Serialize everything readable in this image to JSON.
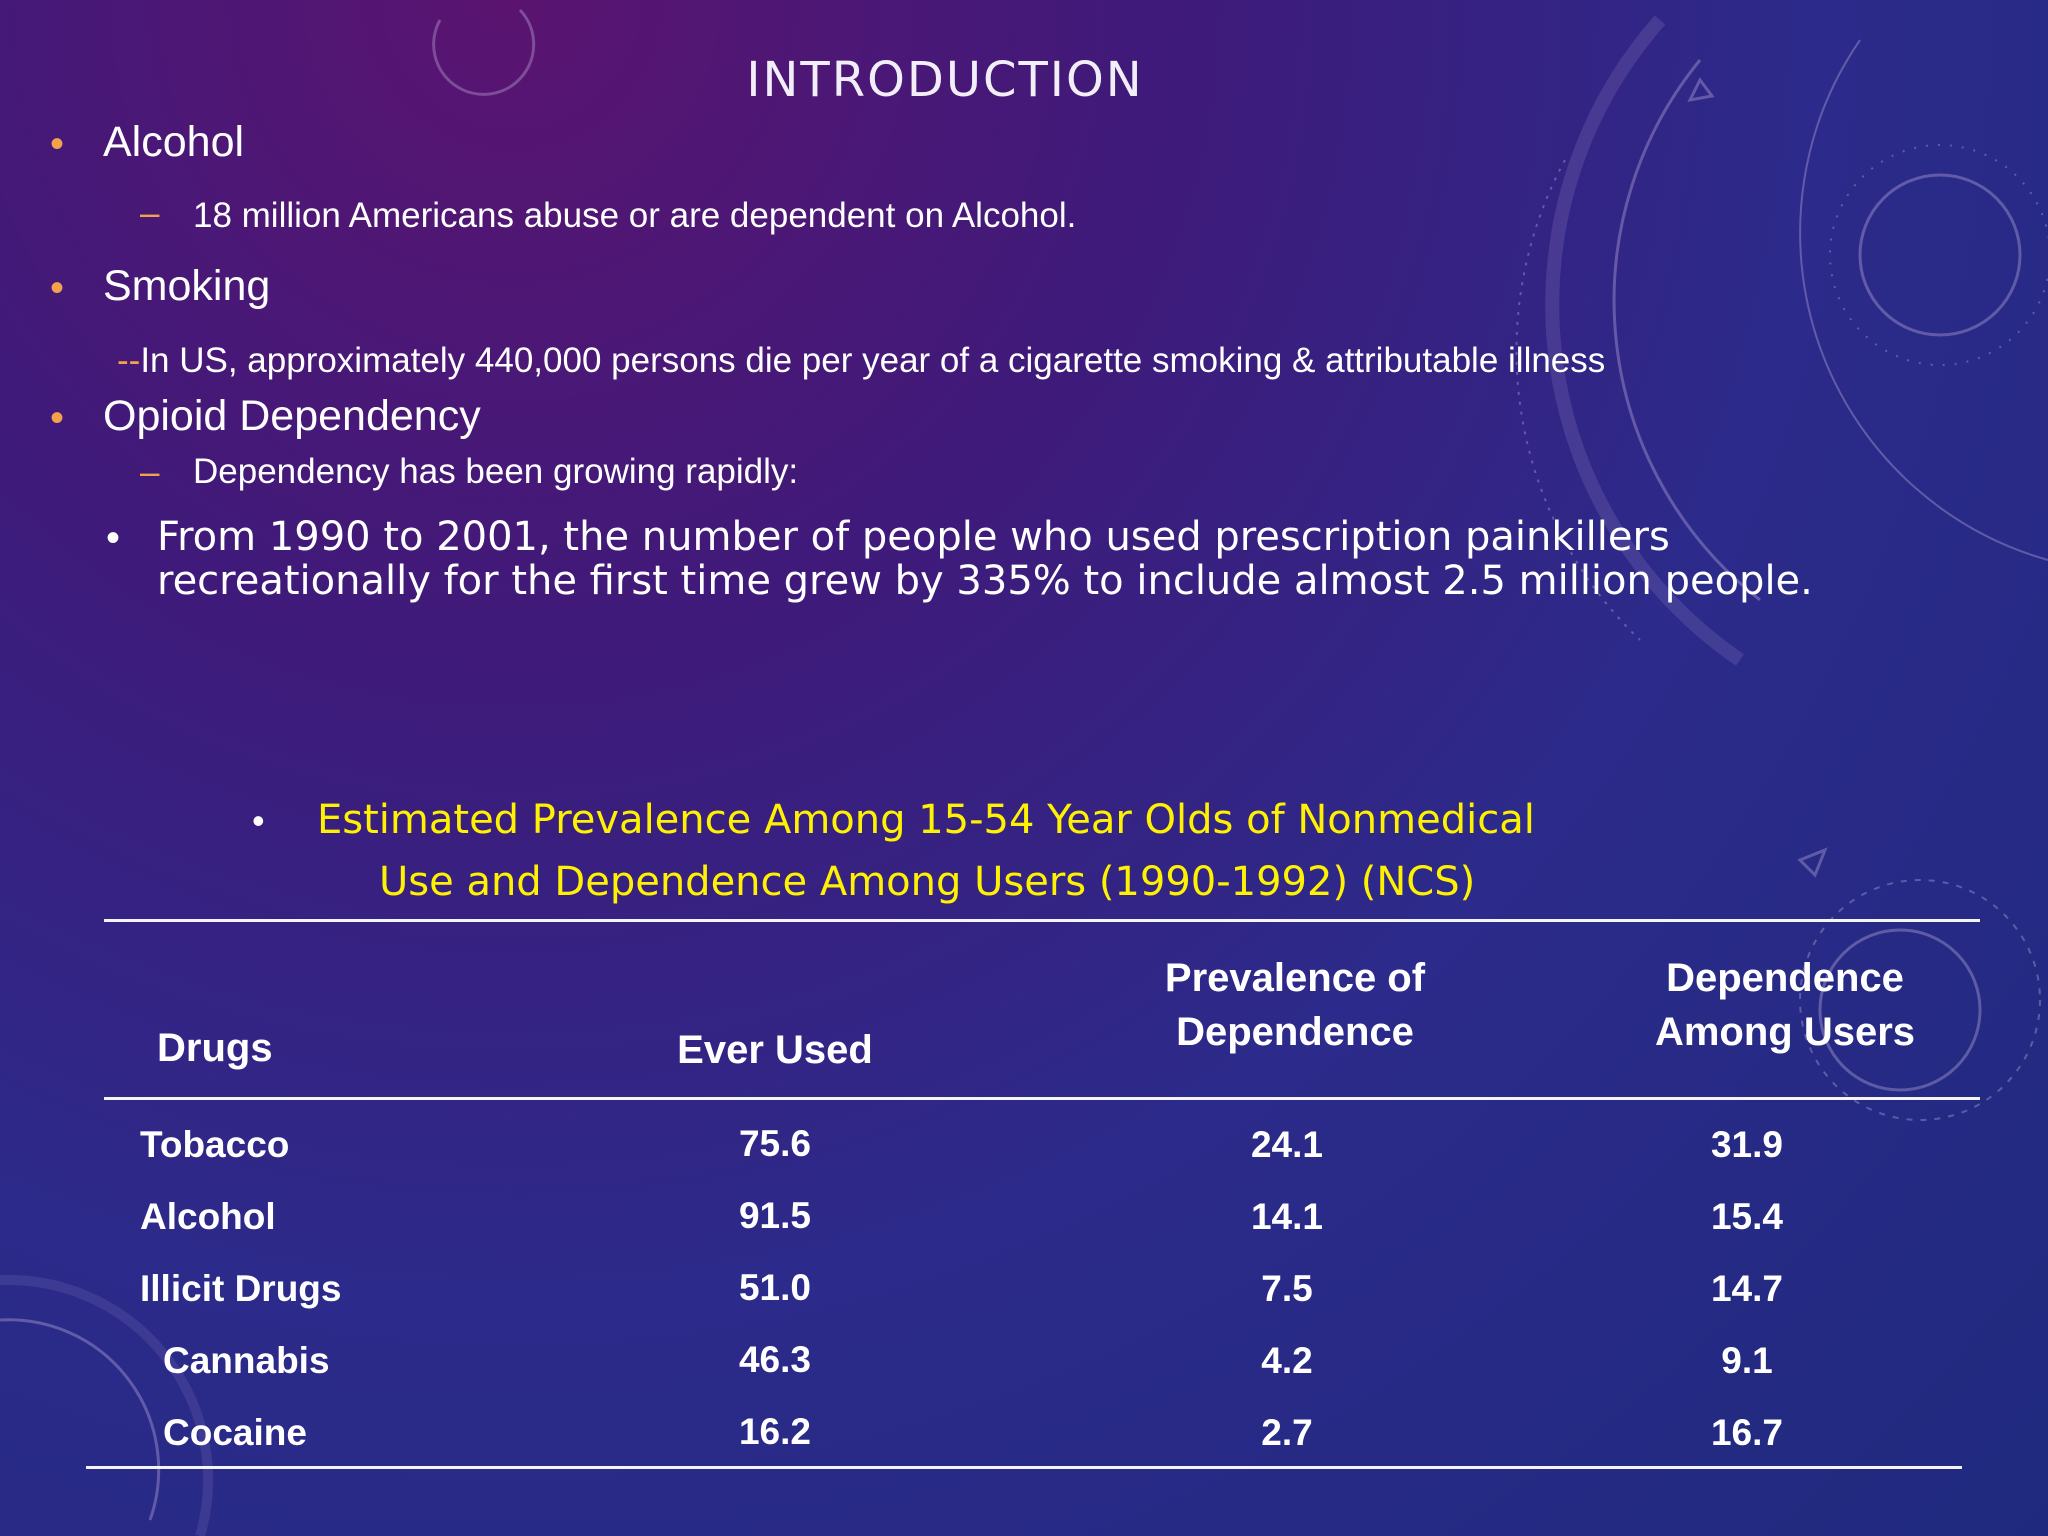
{
  "slide": {
    "title": "INTRODUCTION",
    "bullets": [
      {
        "label": "Alcohol",
        "sub": "18 million Americans abuse or are dependent on Alcohol."
      },
      {
        "label": "Smoking",
        "sub_prefix": "--",
        "sub": "In US, approximately 440,000 persons die per year of a cigarette smoking & attributable illness"
      },
      {
        "label": "Opioid Dependency",
        "sub": "Dependency has been growing rapidly:",
        "sub3_line1": "From 1990 to 2001, the number of people who used prescription painkillers",
        "sub3_line2": "recreationally for the first time grew by 335% to include almost 2.5 million people."
      }
    ]
  },
  "table": {
    "caption_line1": "Estimated Prevalence Among 15-54 Year Olds of Nonmedical",
    "caption_line2": "Use and Dependence Among Users  (1990-1992) (NCS)",
    "headers": {
      "drugs": "Drugs",
      "ever_used": "Ever Used",
      "prevalence_l1": "Prevalence of",
      "prevalence_l2": "Dependence",
      "among_l1": "Dependence",
      "among_l2": "Among Users"
    },
    "rows": [
      {
        "drug": "Tobacco",
        "ever_used": "75.6",
        "prevalence": "24.1",
        "among_users": "31.9"
      },
      {
        "drug": "Alcohol",
        "ever_used": "91.5",
        "prevalence": "14.1",
        "among_users": "15.4"
      },
      {
        "drug": "Illicit Drugs",
        "ever_used": "51.0",
        "prevalence": "7.5",
        "among_users": "14.7"
      },
      {
        "drug": "Cannabis",
        "ever_used": "46.3",
        "prevalence": "4.2",
        "among_users": "9.1"
      },
      {
        "drug": "Cocaine",
        "ever_used": "16.2",
        "prevalence": "2.7",
        "among_users": "16.7"
      }
    ]
  },
  "colors": {
    "bullet_accent": "#f2a24a",
    "caption": "#fff200",
    "text": "#ffffff"
  }
}
